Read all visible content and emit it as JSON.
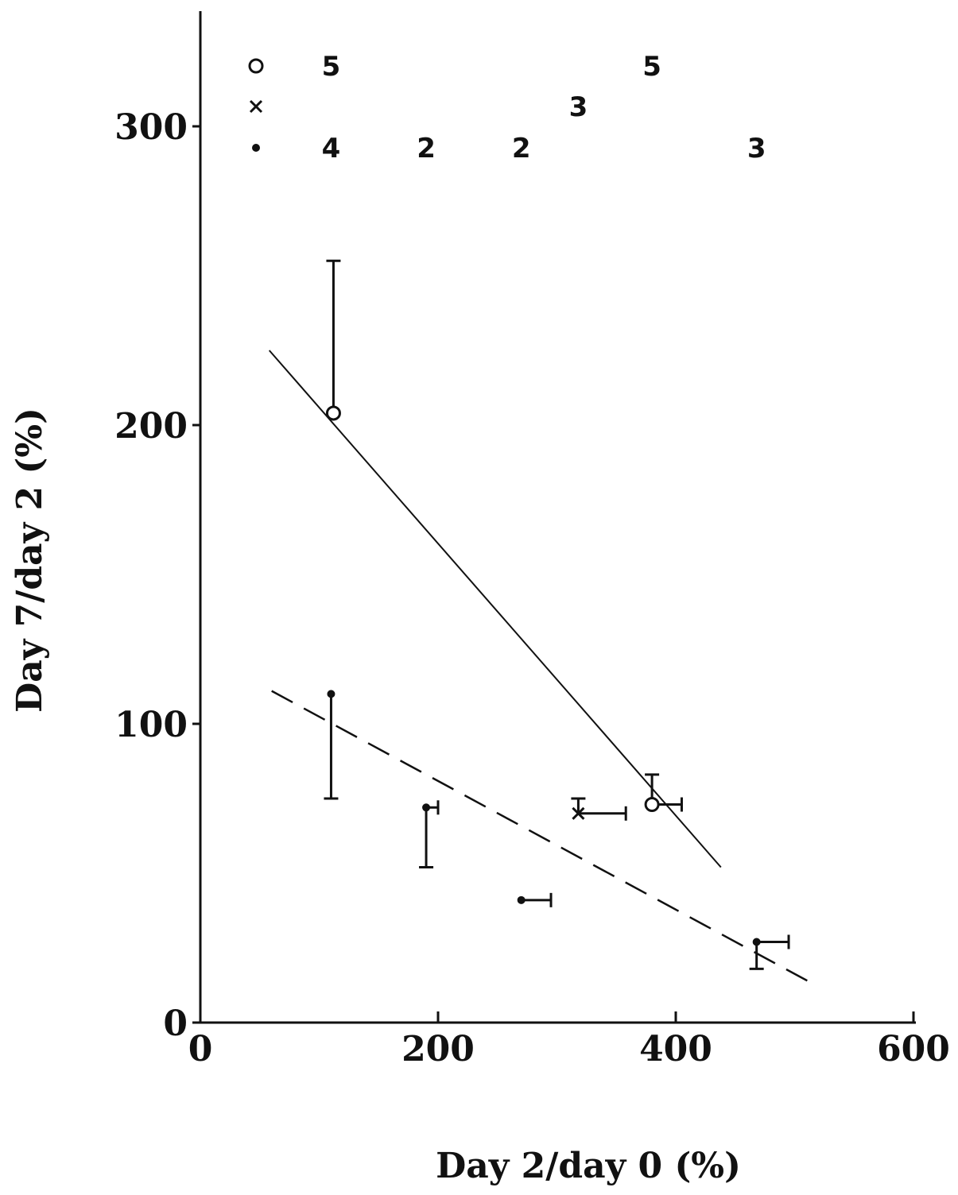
{
  "chart_data": {
    "type": "scatter",
    "xlabel": "Day 2/day 0 (%)",
    "ylabel": "Day 7/day 2 (%)",
    "xlim": [
      0,
      600
    ],
    "ylim": [
      0,
      340
    ],
    "x_ticks": [
      0,
      200,
      400,
      600
    ],
    "y_ticks": [
      0,
      100,
      200,
      300
    ],
    "x_tick_labels": [
      "0",
      "200",
      "400",
      "600"
    ],
    "y_tick_labels": [
      "0",
      "100",
      "200",
      "300"
    ],
    "legend_position": "top-left",
    "series": [
      {
        "marker": "open-circle",
        "points": [
          {
            "x": 112,
            "y": 204,
            "y_err_high": 255
          },
          {
            "x": 380,
            "y": 73,
            "y_err_high": 83,
            "x_err_high": 405
          }
        ]
      },
      {
        "marker": "cross",
        "points": [
          {
            "x": 318,
            "y": 70,
            "y_err_high": 75,
            "x_err_high": 358
          }
        ]
      },
      {
        "marker": "dot",
        "points": [
          {
            "x": 110,
            "y": 110,
            "y_err_low": 75
          },
          {
            "x": 190,
            "y": 72,
            "y_err_low": 52,
            "x_err_high": 200
          },
          {
            "x": 270,
            "y": 41,
            "x_err_high": 295
          },
          {
            "x": 468,
            "y": 27,
            "y_err_low": 18,
            "x_err_high": 495
          }
        ]
      }
    ],
    "fit_lines": [
      {
        "style": "solid",
        "x": [
          58,
          438
        ],
        "y": [
          225,
          52
        ]
      },
      {
        "style": "dashed",
        "x": [
          60,
          520
        ],
        "y": [
          111,
          12
        ]
      }
    ],
    "counts": [
      {
        "marker": "open-circle",
        "x": 110,
        "label": "5"
      },
      {
        "marker": "open-circle",
        "x": 380,
        "label": "5"
      },
      {
        "marker": "cross",
        "x": 318,
        "label": "3"
      },
      {
        "marker": "dot",
        "x": 110,
        "label": "4"
      },
      {
        "marker": "dot",
        "x": 190,
        "label": "2"
      },
      {
        "marker": "dot",
        "x": 270,
        "label": "2"
      },
      {
        "marker": "dot",
        "x": 468,
        "label": "3"
      }
    ]
  }
}
